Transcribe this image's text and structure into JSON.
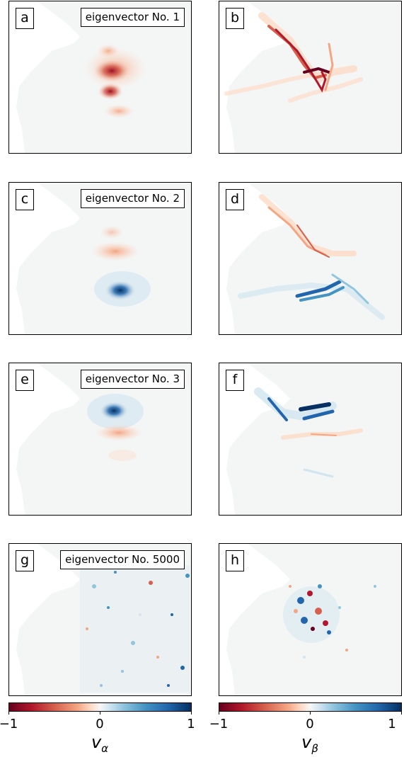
{
  "panels": [
    {
      "letter": "a",
      "title": "eigenvector No. 1"
    },
    {
      "letter": "b",
      "title": ""
    },
    {
      "letter": "c",
      "title": "eigenvector No. 2"
    },
    {
      "letter": "d",
      "title": ""
    },
    {
      "letter": "e",
      "title": "eigenvector No. 3"
    },
    {
      "letter": "f",
      "title": ""
    },
    {
      "letter": "g",
      "title": "eigenvector No. 5000"
    },
    {
      "letter": "h",
      "title": ""
    }
  ],
  "colorbars": [
    {
      "ticks": [
        "−1",
        "0",
        "1"
      ],
      "symbol": "v",
      "subscript": "α"
    },
    {
      "ticks": [
        "−1",
        "0",
        "1"
      ],
      "symbol": "v",
      "subscript": "β"
    }
  ],
  "colors": {
    "negative": "#b2182b",
    "negative_dark": "#67001f",
    "positive": "#2166ac",
    "positive_dark": "#053061",
    "neutral": "#f4f6f6"
  },
  "chart_data": {
    "type": "heatmap",
    "colormap": "RdBu",
    "colorbar_range": [
      -1,
      1
    ],
    "colorbar_ticks": [
      -1,
      0,
      1
    ],
    "columns": [
      "v_α",
      "v_β"
    ],
    "rows": [
      "eigenvector No. 1",
      "eigenvector No. 2",
      "eigenvector No. 3",
      "eigenvector No. 5000"
    ]
  }
}
